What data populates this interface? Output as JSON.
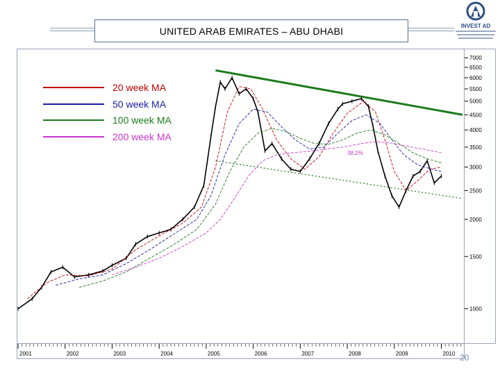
{
  "slide": {
    "title": "UNITED ARAB EMIRATES – ABU DHABI",
    "page_number": "20"
  },
  "logo": {
    "name": "INVEST AD"
  },
  "legend": [
    {
      "label": "20 week MA",
      "color": "#c00000",
      "text_color": "#c00000"
    },
    {
      "label": "50 week MA",
      "color": "#1a1aa0",
      "text_color": "#1a1aa0"
    },
    {
      "label": "100 week MA",
      "color": "#1a7a1a",
      "text_color": "#1a7a1a"
    },
    {
      "label": "200 week MA",
      "color": "#cc33cc",
      "text_color": "#cc33cc"
    }
  ],
  "chart_data": {
    "type": "line",
    "title": "",
    "xlabel": "",
    "ylabel": "",
    "y_scale": "log",
    "ylim": [
      800,
      7200
    ],
    "xlim": [
      2001.0,
      2010.45
    ],
    "x_ticks": [
      "2001",
      "2002",
      "2003",
      "2004",
      "2005",
      "2006",
      "2007",
      "2008",
      "2009",
      "2010"
    ],
    "y_ticks": [
      "7000",
      "6500",
      "6000",
      "5500",
      "5000",
      "4500",
      "4000",
      "3500",
      "3000",
      "2500",
      "2000",
      "1500",
      "1000"
    ],
    "y_tick_values": [
      7000,
      6500,
      6000,
      5500,
      5000,
      4500,
      4000,
      3500,
      3000,
      2500,
      2000,
      1500,
      1000
    ],
    "series": [
      {
        "name": "Index",
        "color": "#000000",
        "x": [
          2001.0,
          2001.3,
          2001.5,
          2001.7,
          2001.95,
          2002.2,
          2002.5,
          2002.8,
          2003.0,
          2003.3,
          2003.5,
          2003.75,
          2004.0,
          2004.25,
          2004.5,
          2004.75,
          2004.95,
          2005.1,
          2005.2,
          2005.3,
          2005.4,
          2005.55,
          2005.7,
          2005.85,
          2006.0,
          2006.1,
          2006.25,
          2006.4,
          2006.6,
          2006.8,
          2007.0,
          2007.2,
          2007.4,
          2007.6,
          2007.8,
          2007.9,
          2008.1,
          2008.3,
          2008.45,
          2008.55,
          2008.65,
          2008.8,
          2008.95,
          2009.1,
          2009.25,
          2009.4,
          2009.55,
          2009.7,
          2009.85,
          2010.0
        ],
        "values": [
          1000,
          1080,
          1180,
          1330,
          1380,
          1280,
          1300,
          1340,
          1400,
          1480,
          1650,
          1750,
          1800,
          1850,
          2000,
          2200,
          2600,
          3800,
          4800,
          5800,
          5500,
          6000,
          5300,
          5500,
          5100,
          4600,
          3400,
          3600,
          3200,
          2950,
          2900,
          3200,
          3600,
          4200,
          4700,
          4900,
          5000,
          5100,
          4800,
          4100,
          3400,
          2800,
          2400,
          2200,
          2500,
          2800,
          2900,
          3150,
          2650,
          2800
        ]
      },
      {
        "name": "20 week MA",
        "color": "#c00000",
        "x": [
          2001.2,
          2001.6,
          2002.0,
          2002.5,
          2003.0,
          2003.5,
          2004.0,
          2004.5,
          2004.9,
          2005.2,
          2005.45,
          2005.7,
          2005.95,
          2006.2,
          2006.5,
          2006.8,
          2007.1,
          2007.4,
          2007.7,
          2008.0,
          2008.35,
          2008.6,
          2008.8,
          2009.0,
          2009.25,
          2009.5,
          2009.75,
          2010.0
        ],
        "values": [
          1080,
          1220,
          1300,
          1290,
          1360,
          1580,
          1760,
          1940,
          2200,
          3000,
          4600,
          5600,
          5500,
          4700,
          3700,
          3200,
          2950,
          3250,
          3900,
          4550,
          5000,
          4600,
          3700,
          2900,
          2500,
          2700,
          2950,
          3000
        ]
      },
      {
        "name": "50 week MA",
        "color": "#1a1aa0",
        "x": [
          2001.8,
          2002.3,
          2002.8,
          2003.3,
          2003.8,
          2004.3,
          2004.8,
          2005.1,
          2005.4,
          2005.7,
          2006.0,
          2006.3,
          2006.6,
          2006.9,
          2007.2,
          2007.5,
          2007.8,
          2008.1,
          2008.4,
          2008.7,
          2008.95,
          2009.2,
          2009.5,
          2009.8,
          2010.0
        ],
        "values": [
          1200,
          1260,
          1300,
          1420,
          1580,
          1780,
          2000,
          2400,
          3300,
          4200,
          4700,
          4600,
          4100,
          3700,
          3450,
          3500,
          3900,
          4300,
          4500,
          4200,
          3700,
          3300,
          3050,
          2950,
          2900
        ]
      },
      {
        "name": "100 week MA",
        "color": "#1a7a1a",
        "x": [
          2002.3,
          2002.8,
          2003.3,
          2003.8,
          2004.3,
          2004.8,
          2005.2,
          2005.5,
          2005.8,
          2006.1,
          2006.4,
          2006.7,
          2007.0,
          2007.3,
          2007.6,
          2007.9,
          2008.2,
          2008.5,
          2008.8,
          2009.1,
          2009.4,
          2009.7,
          2010.0
        ],
        "values": [
          1180,
          1240,
          1330,
          1480,
          1640,
          1850,
          2250,
          2900,
          3500,
          3900,
          4050,
          3950,
          3750,
          3600,
          3580,
          3700,
          3900,
          4000,
          3850,
          3600,
          3350,
          3200,
          3100
        ]
      },
      {
        "name": "200 week MA",
        "color": "#cc33cc",
        "x": [
          2003.0,
          2003.5,
          2004.0,
          2004.5,
          2005.0,
          2005.3,
          2005.6,
          2005.9,
          2006.2,
          2006.5,
          2006.8,
          2007.1,
          2007.4,
          2007.7,
          2008.0,
          2008.3,
          2008.6,
          2008.9,
          2009.2,
          2009.5,
          2009.8,
          2010.0
        ],
        "values": [
          1300,
          1380,
          1480,
          1620,
          1800,
          2000,
          2350,
          2800,
          3150,
          3300,
          3350,
          3380,
          3420,
          3470,
          3520,
          3600,
          3650,
          3620,
          3540,
          3470,
          3400,
          3350
        ]
      }
    ],
    "trendlines": [
      {
        "name": "resistance",
        "color": "#1a7a1a",
        "style": "solid",
        "x": [
          2005.2,
          2010.45
        ],
        "values": [
          6350,
          4500
        ]
      },
      {
        "name": "support",
        "color": "#1a7a1a",
        "style": "dotted",
        "x": [
          2005.2,
          2010.45
        ],
        "values": [
          3150,
          2350
        ]
      }
    ],
    "annotations": [
      {
        "text": "38.2%",
        "x": 2008.0,
        "y": 3300,
        "color": "#cc33cc"
      }
    ],
    "grid": false
  }
}
